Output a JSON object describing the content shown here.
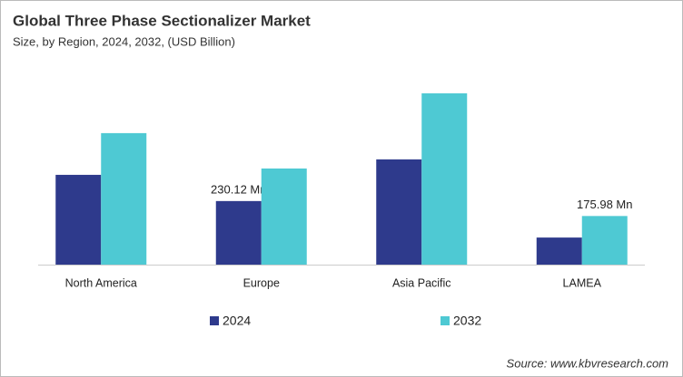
{
  "chart_data": {
    "type": "bar",
    "title": "Global Three Phase Sectionalizer Market",
    "subtitle": "Size, by Region, 2024, 2032, (USD Billion)",
    "categories": [
      "North America",
      "Europe",
      "Asia Pacific",
      "LAMEA"
    ],
    "series": [
      {
        "name": "2024",
        "color": "#2e3a8c",
        "values": [
          325,
          230.12,
          381,
          98
        ],
        "value_labels": [
          null,
          "230.12 Mn",
          null,
          null
        ]
      },
      {
        "name": "2032",
        "color": "#4ec9d3",
        "values": [
          476,
          348,
          620,
          175.98
        ],
        "value_labels": [
          null,
          null,
          null,
          "175.98  Mn"
        ]
      }
    ],
    "source": "Source: www.kbvresearch.com"
  }
}
